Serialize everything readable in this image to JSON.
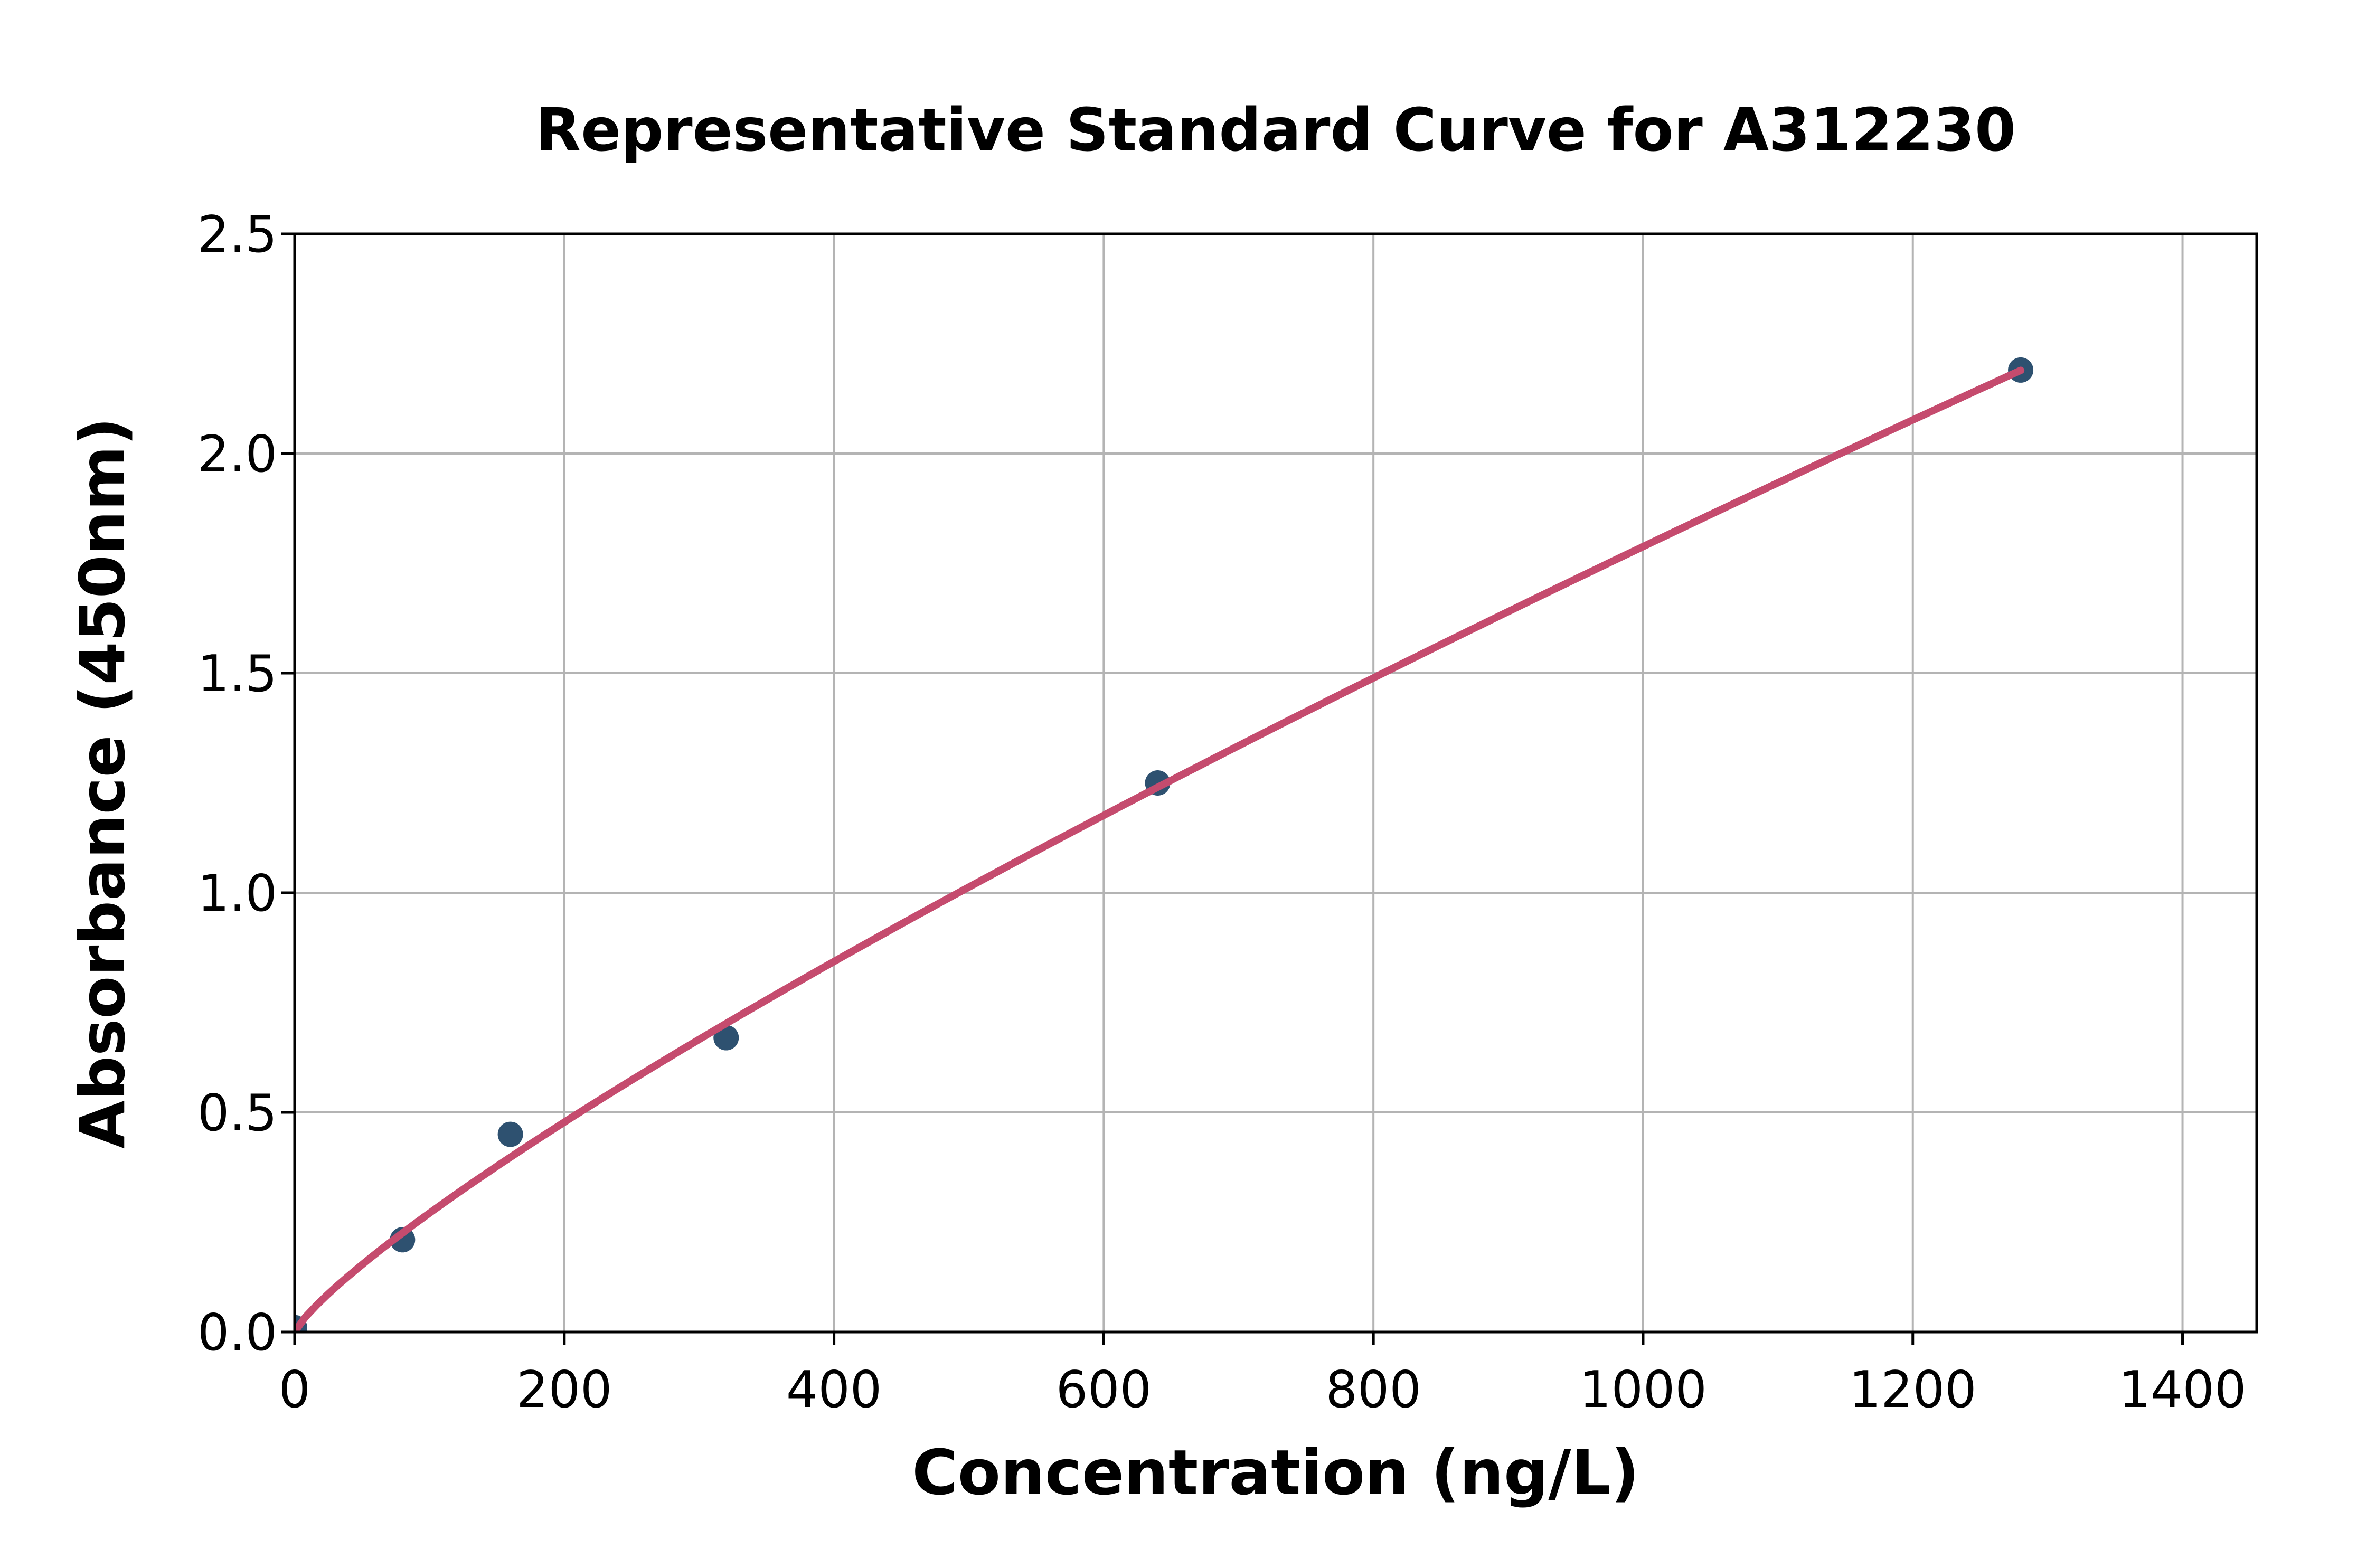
{
  "chart_data": {
    "type": "scatter",
    "title": "Representative Standard Curve for A312230",
    "xlabel": "Concentration (ng/L)",
    "ylabel": "Absorbance (450nm)",
    "points": [
      {
        "x": 0,
        "y": 0.01
      },
      {
        "x": 80,
        "y": 0.21
      },
      {
        "x": 160,
        "y": 0.45
      },
      {
        "x": 320,
        "y": 0.67
      },
      {
        "x": 640,
        "y": 1.25
      },
      {
        "x": 1280,
        "y": 2.19
      }
    ],
    "fit_curve": {
      "type": "power",
      "formula": "y = 0.0062 * x^0.82",
      "a": 0.0062,
      "b": 0.82,
      "x_start": 0,
      "x_end": 1280
    },
    "xlim": [
      0,
      1455
    ],
    "ylim": [
      0,
      2.5
    ],
    "xticks": [
      0,
      200,
      400,
      600,
      800,
      1000,
      1200,
      1400
    ],
    "yticks": [
      0.0,
      0.5,
      1.0,
      1.5,
      2.0,
      2.5
    ],
    "ytick_labels": [
      "0.0",
      "0.5",
      "1.0",
      "1.5",
      "2.0",
      "2.5"
    ],
    "grid": true,
    "legend": "none",
    "colors": {
      "marker": "#2E5170",
      "line": "#C54B6E",
      "grid": "#B4B4B4",
      "spine": "#000000",
      "text": "#000000",
      "background": "#FFFFFF"
    }
  }
}
